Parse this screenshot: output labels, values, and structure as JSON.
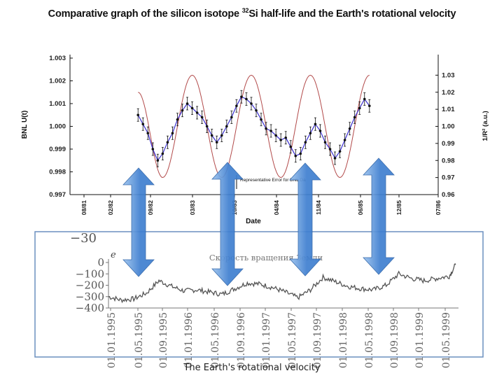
{
  "title": {
    "prefix": "Comparative graph of the silicon isotope ",
    "superscript": "32",
    "suffix": "Si half-life and the Earth's rotational velocity"
  },
  "caption": "The Earth's rotational velocity",
  "colors": {
    "measurement_line": "#3a2fd0",
    "measurement_marker": "#111111",
    "model_curve": "#b24a4a",
    "arrow_fill": "#3f7fd0",
    "arrow_fill_light": "#9cc3ee",
    "rotation_series": "#555555",
    "inset_border": "#6b8fbf"
  },
  "chart_data": [
    {
      "type": "line",
      "xlabel": "Date",
      "ylabel": "BNL U(t)",
      "ylabel_right": "1/R² (a.u.)",
      "x_ticks": [
        "08/81",
        "02/82",
        "09/82",
        "03/83",
        "10/83",
        "04/84",
        "11/84",
        "06/85",
        "12/85",
        "07/86"
      ],
      "x_range": [
        "1981-08",
        "1986-07"
      ],
      "ylim": [
        0.997,
        1.003
      ],
      "y_ticks": [
        "0.997",
        "0.998",
        "0.999",
        "1.000",
        "1.001",
        "1.002",
        "1.003"
      ],
      "ylim_right": [
        0.96,
        1.04
      ],
      "y_ticks_right": [
        "0.96",
        "0.97",
        "0.98",
        "0.99",
        "1.00",
        "1.01",
        "1.02",
        "1.03"
      ],
      "annotation": "Representative Error for BNL Da",
      "grid": false,
      "series": [
        {
          "axis": "left",
          "x": [
            "1982-02",
            "1982-03",
            "1982-04",
            "1982-05",
            "1982-06",
            "1982-07",
            "1982-08",
            "1982-09",
            "1982-10",
            "1982-11",
            "1982-12",
            "1983-01",
            "1983-02",
            "1983-03",
            "1983-04",
            "1983-05",
            "1983-06",
            "1983-07",
            "1983-08",
            "1983-09",
            "1983-10",
            "1983-11",
            "1983-12",
            "1984-01",
            "1984-02",
            "1984-03",
            "1984-04",
            "1984-05",
            "1984-06",
            "1984-07",
            "1984-08",
            "1984-09",
            "1984-10",
            "1984-11",
            "1984-12",
            "1985-01",
            "1985-02",
            "1985-03",
            "1985-04",
            "1985-05",
            "1985-06",
            "1985-07",
            "1985-08",
            "1985-09",
            "1985-10",
            "1985-11",
            "1985-12",
            "1986-01"
          ],
          "values": [
            1.0005,
            1.0001,
            0.9997,
            0.999,
            0.9985,
            0.9988,
            0.9993,
            0.9997,
            1.0003,
            1.0007,
            1.001,
            1.0008,
            1.0006,
            1.0004,
            1.0,
            0.9996,
            0.9993,
            0.9996,
            1.0,
            1.0004,
            1.0009,
            1.0013,
            1.0012,
            1.001,
            1.0007,
            1.0003,
            0.9999,
            0.9998,
            0.9996,
            0.9994,
            0.9995,
            0.9991,
            0.9987,
            0.9988,
            0.9993,
            0.9997,
            1.0001,
            0.9998,
            0.9993,
            0.999,
            0.9986,
            0.9989,
            0.9994,
            0.9999,
            1.0004,
            1.0008,
            1.0012,
            1.0009
          ]
        },
        {
          "axis": "right",
          "x": [
            "1982-02",
            "1982-07",
            "1983-01",
            "1983-07",
            "1984-01",
            "1984-07",
            "1985-01",
            "1985-07",
            "1986-01"
          ],
          "values": [
            1.02,
            0.97,
            1.03,
            0.97,
            1.03,
            0.97,
            1.03,
            0.97,
            1.03
          ]
        }
      ]
    },
    {
      "type": "line",
      "title": "Скорость вращения Земли",
      "ylabel": "e",
      "ylim": [
        -400,
        0
      ],
      "y_ticks": [
        "-400",
        "-300",
        "-200",
        "-100",
        "0"
      ],
      "x_ticks": [
        "01.01.1995",
        "01.05.1995",
        "01.09.1995",
        "01.01.1996",
        "01.05.1996",
        "01.09.1996",
        "01.01.1997",
        "01.05.1997",
        "01.09.1997",
        "01.01.1998",
        "01.05.1998",
        "01.09.1998",
        "01.01.1999",
        "01.05.1999"
      ],
      "x_range": [
        "1995-01-01",
        "1999-08-15"
      ],
      "grid": false,
      "series": [
        {
          "x": [
            "1995-01",
            "1995-03",
            "1995-05",
            "1995-07",
            "1995-09",
            "1995-11",
            "1996-01",
            "1996-03",
            "1996-05",
            "1996-07",
            "1996-09",
            "1996-11",
            "1997-01",
            "1997-03",
            "1997-05",
            "1997-07",
            "1997-09",
            "1997-11",
            "1998-01",
            "1998-03",
            "1998-05",
            "1998-07",
            "1998-09",
            "1998-11",
            "1999-01",
            "1999-03",
            "1999-05",
            "1999-07",
            "1999-08"
          ],
          "values": [
            -300,
            -330,
            -320,
            -270,
            -160,
            -210,
            -250,
            -240,
            -260,
            -280,
            -230,
            -180,
            -190,
            -220,
            -260,
            -310,
            -240,
            -130,
            -170,
            -210,
            -230,
            -240,
            -200,
            -100,
            -140,
            -160,
            -140,
            -120,
            -20
          ]
        }
      ]
    }
  ]
}
